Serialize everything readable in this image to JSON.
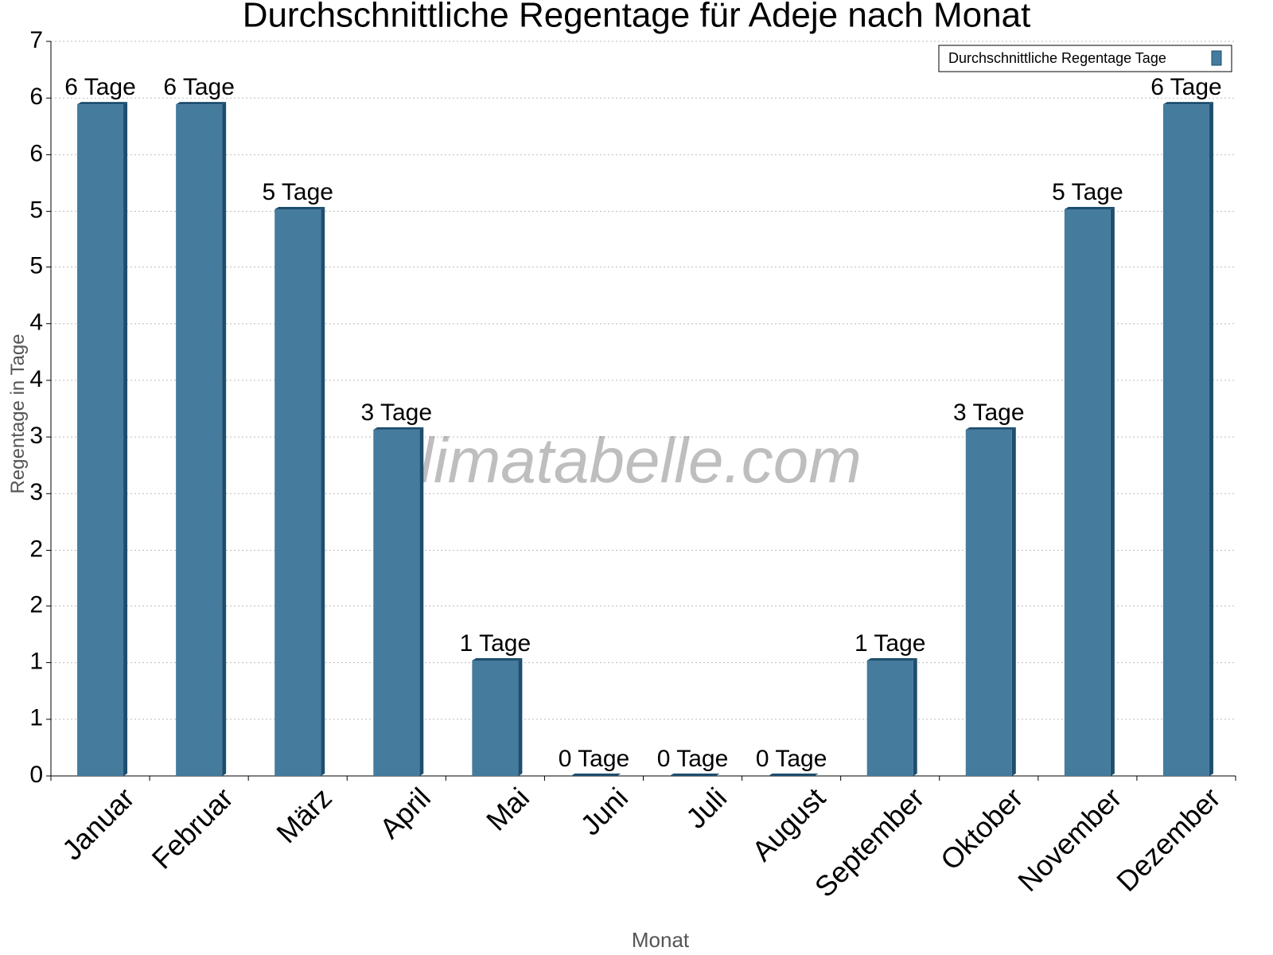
{
  "chart_data": {
    "type": "bar",
    "title": "Durchschnittliche Regentage für Adeje nach Monat",
    "x_label": "Monat",
    "y_label": "Regentage in Tage",
    "watermark": "klimatabelle.com",
    "categories": [
      "Januar",
      "Februar",
      "März",
      "April",
      "Mai",
      "Juni",
      "Juli",
      "August",
      "September",
      "Oktober",
      "November",
      "Dezember"
    ],
    "series": [
      {
        "name": "Durchschnittliche Regentage Tage",
        "color": "#457b9d",
        "values": [
          6.4,
          6.4,
          5.4,
          3.3,
          1.1,
          0,
          0,
          0,
          1.1,
          3.3,
          5.4,
          6.4
        ],
        "value_labels": [
          "6 Tage",
          "6 Tage",
          "5 Tage",
          "3 Tage",
          "1 Tage",
          "0 Tage",
          "0 Tage",
          "0 Tage",
          "1 Tage",
          "3 Tage",
          "5 Tage",
          "6 Tage"
        ]
      }
    ],
    "ylim": [
      0,
      7
    ],
    "yticks": [
      0,
      {
        "value": 0.54,
        "label": "1"
      },
      {
        "value": 1.08,
        "label": "1"
      },
      {
        "value": 1.62,
        "label": "2"
      },
      {
        "value": 2.15,
        "label": "2"
      },
      {
        "value": 2.69,
        "label": "3"
      },
      {
        "value": 3.23,
        "label": "3"
      },
      {
        "value": 3.77,
        "label": "4"
      },
      {
        "value": 4.31,
        "label": "4"
      },
      {
        "value": 4.85,
        "label": "5"
      },
      {
        "value": 5.38,
        "label": "5"
      },
      {
        "value": 5.92,
        "label": "6"
      },
      {
        "value": 6.46,
        "label": "6"
      },
      7
    ],
    "grid": true,
    "legend": "top-right"
  }
}
